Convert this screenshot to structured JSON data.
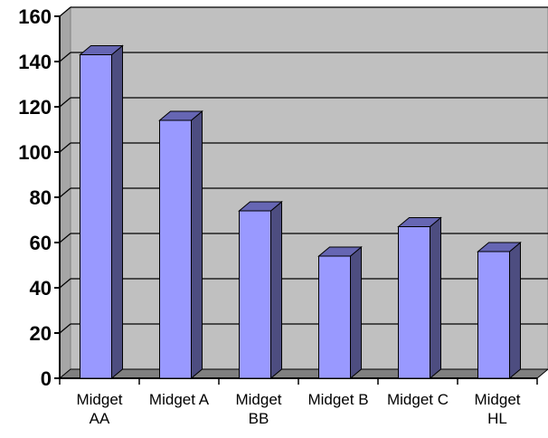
{
  "chart_data": {
    "type": "bar",
    "categories": [
      [
        "Midget",
        "AA"
      ],
      [
        "Midget A"
      ],
      [
        "Midget",
        "BB"
      ],
      [
        "Midget B"
      ],
      [
        "Midget C"
      ],
      [
        "Midget",
        "HL"
      ]
    ],
    "values": [
      143,
      114,
      74,
      54,
      67,
      56
    ],
    "ylim": [
      0,
      160
    ],
    "yticks": [
      "0",
      "20",
      "40",
      "60",
      "80",
      "100",
      "120",
      "140",
      "160"
    ],
    "grid": true,
    "title": "",
    "xlabel": "",
    "ylabel": "",
    "colors": {
      "bar_front": "#9999ff",
      "bar_side": "#4d4d80",
      "bar_top": "#6666b3",
      "wall": "#c0c0c0",
      "floor": "#808080",
      "gridline": "#000000",
      "border": "#000000"
    }
  }
}
